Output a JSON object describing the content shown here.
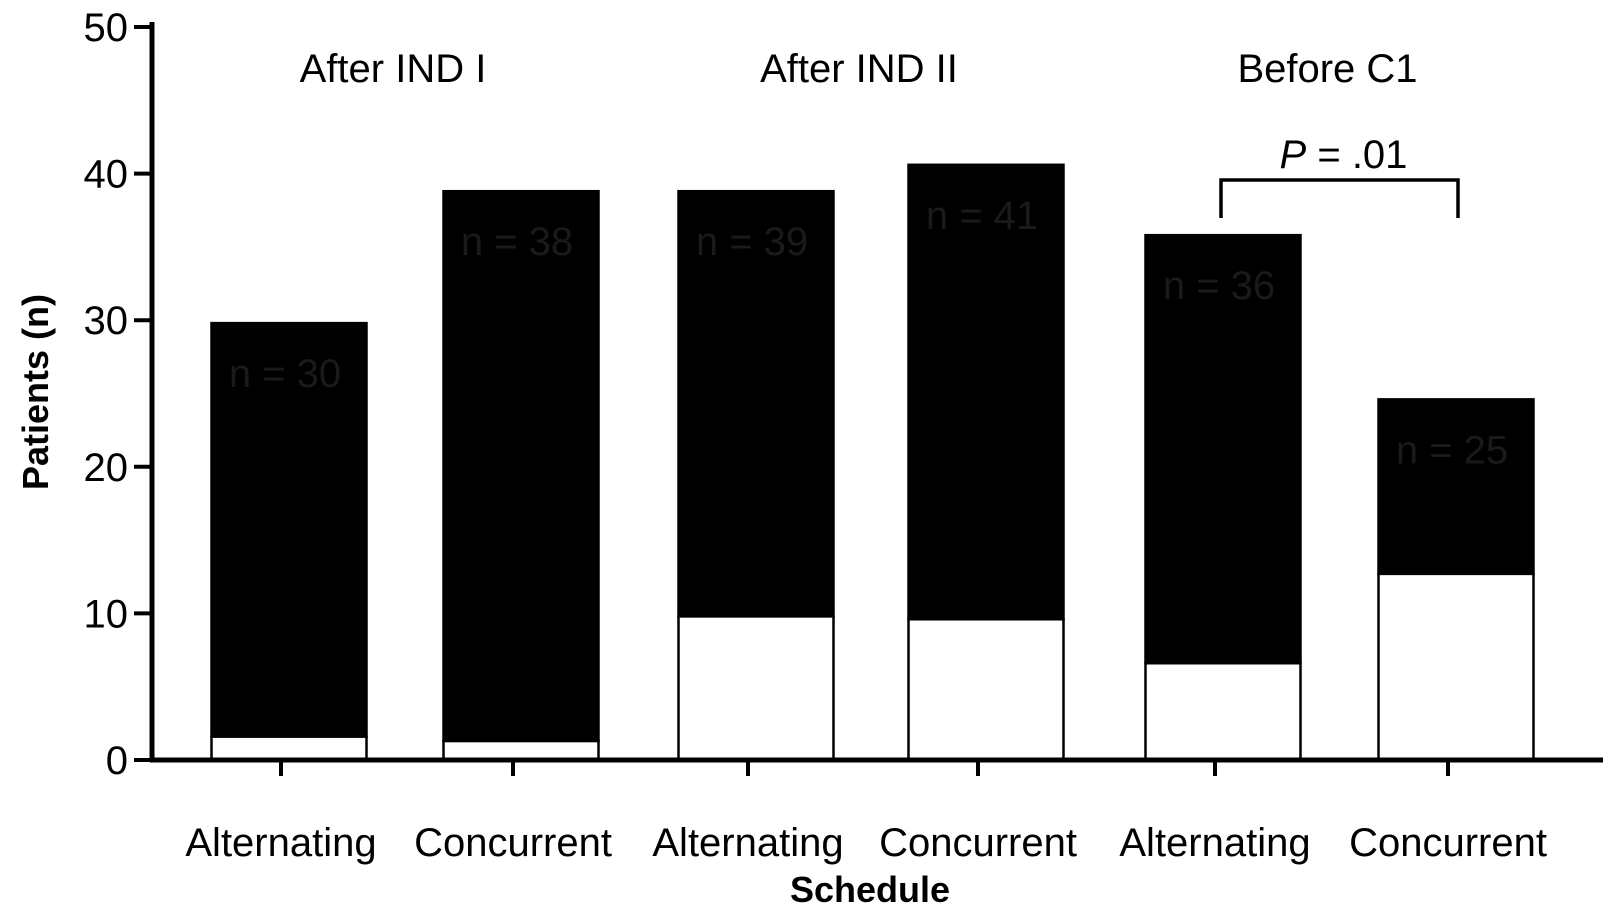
{
  "chart_data": {
    "type": "bar",
    "stacked": true,
    "categories": [
      "Alternating",
      "Concurrent",
      "Alternating",
      "Concurrent",
      "Alternating",
      "Concurrent"
    ],
    "groups": [
      {
        "label": "After IND I",
        "categories": [
          0,
          1
        ]
      },
      {
        "label": "After IND II",
        "categories": [
          2,
          3
        ]
      },
      {
        "label": "Before C1",
        "categories": [
          4,
          5
        ]
      }
    ],
    "series": [
      {
        "color": "#ffffff",
        "values": [
          1.6,
          1.3,
          9.8,
          9.6,
          6.6,
          12.7
        ]
      },
      {
        "color": "#000000",
        "values": [
          28.2,
          37.5,
          29.0,
          31.0,
          29.2,
          11.9
        ]
      }
    ],
    "bar_labels": [
      "n = 30",
      "n = 38",
      "n = 39",
      "n = 41",
      "n = 36",
      "n = 25"
    ],
    "ylabel": "Patients (n)",
    "xlabel": "Schedule",
    "ylim": [
      0,
      50
    ],
    "yticks": [
      0,
      10,
      20,
      30,
      40,
      50
    ],
    "grid": false,
    "annotation": {
      "p_italic": "P",
      "text": " = .01",
      "between": [
        4,
        5
      ]
    }
  }
}
